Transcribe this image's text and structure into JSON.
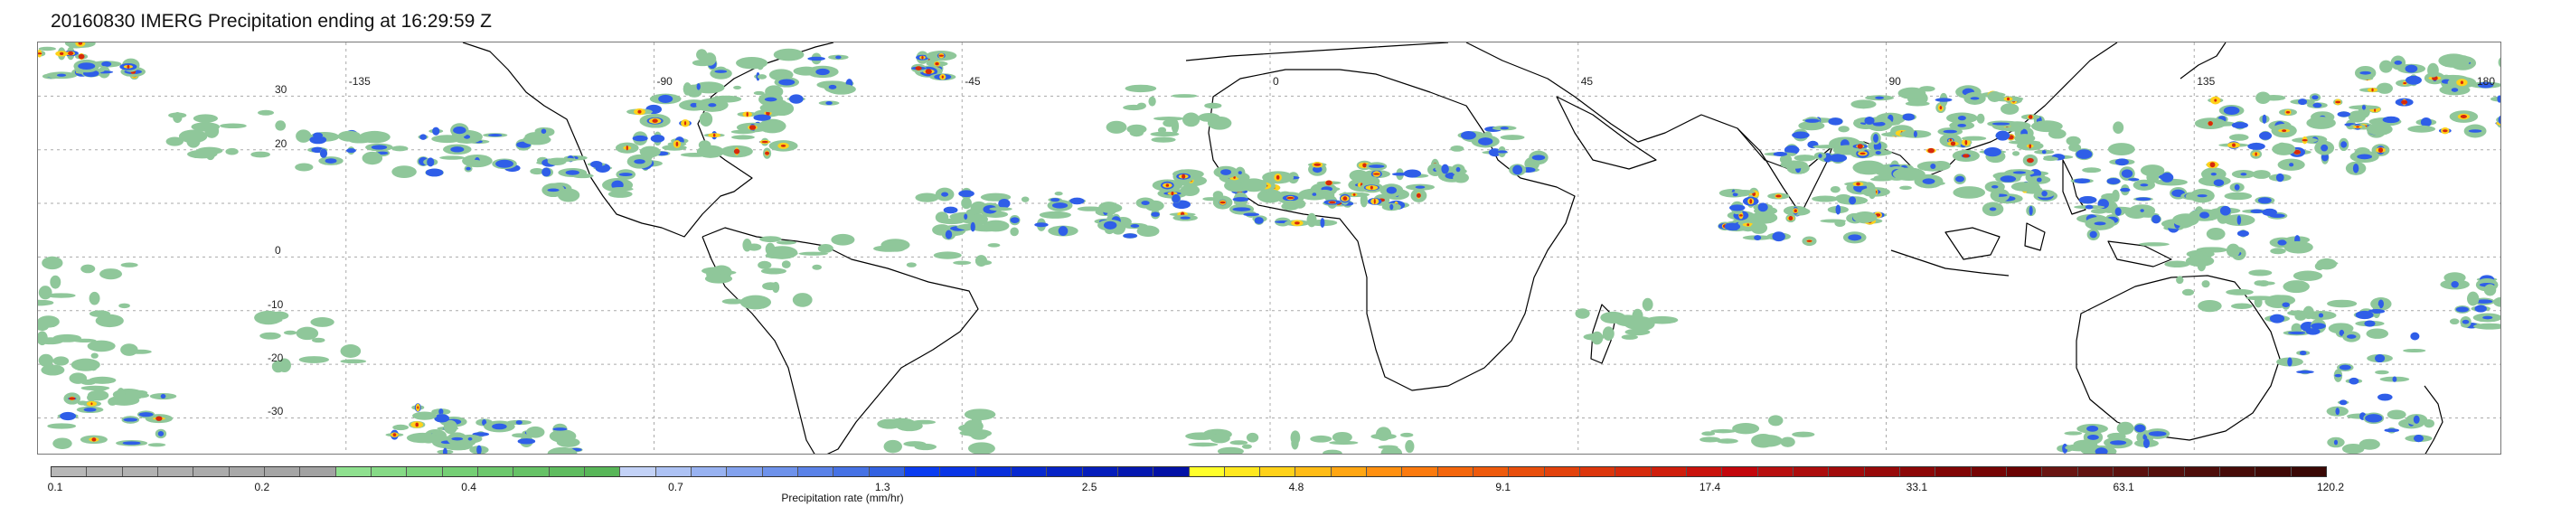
{
  "title": "20160830 IMERG Precipitation ending at 16:29:59 Z",
  "map": {
    "lat_labels": [
      "30",
      "20",
      "0",
      "-10",
      "-20",
      "-30"
    ],
    "lon_labels": [
      "-135",
      "-90",
      "-45",
      "0",
      "45",
      "90",
      "135",
      "180"
    ],
    "lat_values": [
      30,
      20,
      0,
      -10,
      -20,
      -30
    ],
    "lon_values": [
      -135,
      -90,
      -45,
      0,
      45,
      90,
      135,
      180
    ]
  },
  "colorbar": {
    "caption": "Precipitation rate (mm/hr)",
    "tick_labels": [
      "0.1",
      "0.2",
      "0.4",
      "0.7",
      "1.3",
      "2.5",
      "4.8",
      "9.1",
      "17.4",
      "33.1",
      "63.1",
      "120.2"
    ],
    "colors": [
      "#b7b7b7",
      "#b4b4b4",
      "#b1b1b1",
      "#aeaeae",
      "#ababab",
      "#a8a8a8",
      "#a5a5a5",
      "#a2a2a2",
      "#8fe08f",
      "#86da86",
      "#7dd47d",
      "#75cf75",
      "#6dc86d",
      "#66c266",
      "#5fbc5f",
      "#58b658",
      "#c3d2f7",
      "#adc2f4",
      "#98b2f1",
      "#83a2ee",
      "#6e92eb",
      "#5a82e8",
      "#4672e5",
      "#3362e2",
      "#0a3cf0",
      "#0935e6",
      "#082fdb",
      "#0729d0",
      "#0623c6",
      "#051dbb",
      "#0417b0",
      "#0311a6",
      "#ffff2a",
      "#ffe81f",
      "#ffd21a",
      "#ffbc16",
      "#ffa613",
      "#ff9010",
      "#fb7a0e",
      "#f4660c",
      "#ee5a0c",
      "#e84e0c",
      "#e2420c",
      "#dc360c",
      "#d62a0c",
      "#cf1e0c",
      "#c9120c",
      "#c3060c",
      "#b80f0f",
      "#ad0d0d",
      "#a20b0b",
      "#970909",
      "#8c0707",
      "#810505",
      "#760404",
      "#6b0303",
      "#6a1512",
      "#631310",
      "#5c110e",
      "#550f0c",
      "#4e0d0a",
      "#470b08",
      "#400906",
      "#3a0805"
    ]
  },
  "colors": {
    "land_outline": "#000000",
    "grid": "#aaaaaa",
    "precip_light": "#8fc79a",
    "precip_blue": "#2f5ee8",
    "precip_yellow": "#ffd21a",
    "precip_red": "#d6290c"
  }
}
